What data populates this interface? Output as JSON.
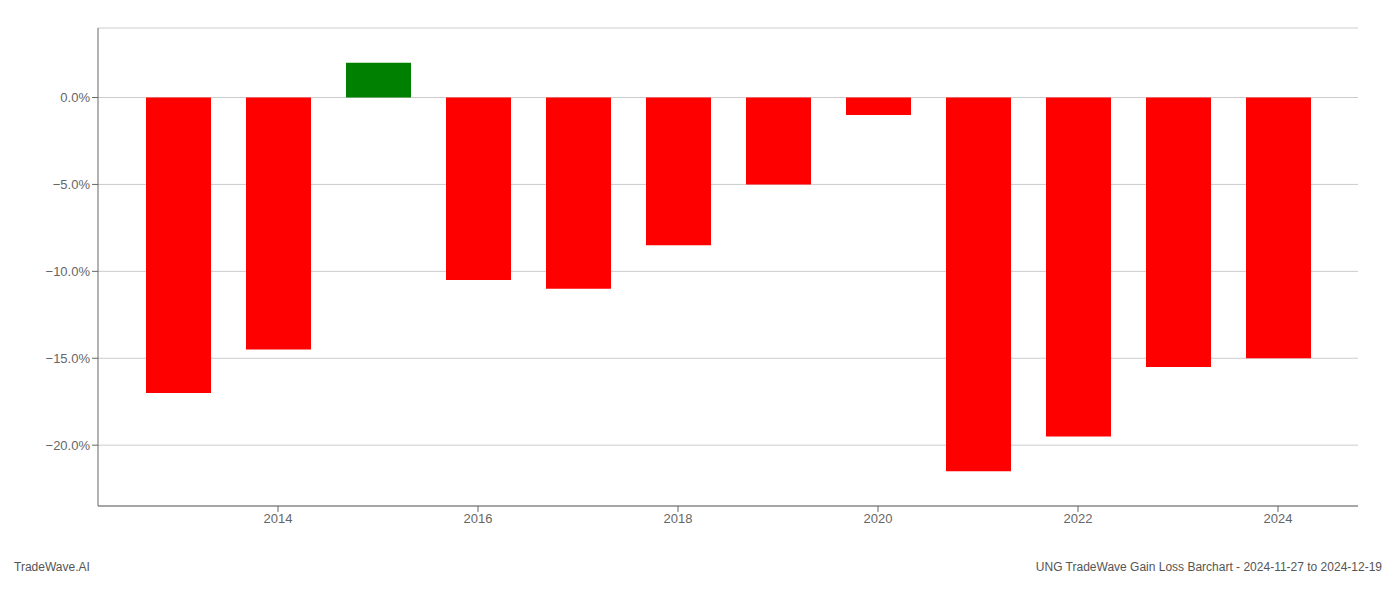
{
  "chart_data": {
    "type": "bar",
    "x": [
      2013,
      2014,
      2015,
      2016,
      2017,
      2018,
      2019,
      2020,
      2021,
      2022,
      2023,
      2024
    ],
    "values": [
      -17.0,
      -14.5,
      2.0,
      -10.5,
      -11.0,
      -8.5,
      -5.0,
      -1.0,
      -21.5,
      -19.5,
      -15.5,
      -15.0
    ],
    "colors": [
      "#ff0000",
      "#ff0000",
      "#008000",
      "#ff0000",
      "#ff0000",
      "#ff0000",
      "#ff0000",
      "#ff0000",
      "#ff0000",
      "#ff0000",
      "#ff0000",
      "#ff0000"
    ],
    "xlim": [
      2012.2,
      2024.8
    ],
    "xticks": [
      2014,
      2016,
      2018,
      2020,
      2022,
      2024
    ],
    "ylim": [
      -23.5,
      4.0
    ],
    "yticks": [
      {
        "value": 0.0,
        "label": "0.0%"
      },
      {
        "value": -5.0,
        "label": "−5.0%"
      },
      {
        "value": -10.0,
        "label": "−10.0%"
      },
      {
        "value": -15.0,
        "label": "−15.0%"
      },
      {
        "value": -20.0,
        "label": "−20.0%"
      }
    ],
    "grid": true,
    "annotations": [
      "TradeWave.AI",
      "UNG TradeWave Gain Loss Barchart - 2024-11-27 to 2024-12-19"
    ]
  }
}
